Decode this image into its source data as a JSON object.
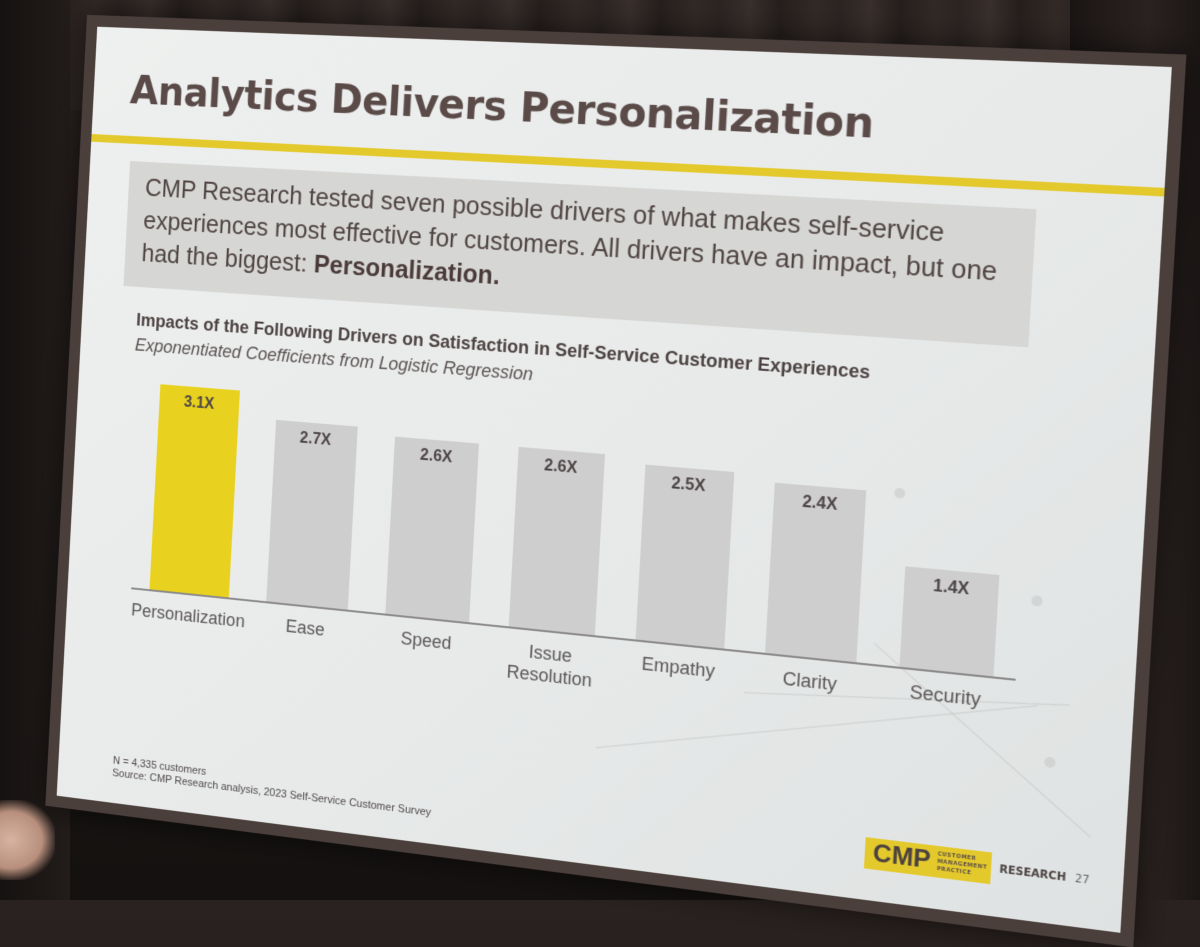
{
  "slide": {
    "title": "Analytics Delivers Personalization",
    "intro_text": "CMP Research tested seven possible drivers of what makes self-service experiences most effective for customers. All drivers have an impact, but one had the biggest: ",
    "intro_emphasis": "Personalization.",
    "chart_title": "Impacts of the Following Drivers on Satisfaction in Self-Service Customer Experiences",
    "chart_subtitle": "Exponentiated Coefficients from Logistic Regression",
    "footnote_n": "N = 4,335 customers",
    "footnote_source": "Source: CMP Research analysis, 2023 Self-Service Customer Survey",
    "logo": {
      "mark": "CMP",
      "sub_line1": "CUSTOMER",
      "sub_line2": "MANAGEMENT",
      "sub_line3": "PRACTICE",
      "research": "RESEARCH",
      "page_number": "27"
    },
    "colors": {
      "accent_yellow": "#e9d21f",
      "bar_gray": "#cfcecf",
      "title_text": "#5a4a48"
    }
  },
  "chart_data": {
    "type": "bar",
    "title": "Impacts of the Following Drivers on Satisfaction in Self-Service Customer Experiences",
    "subtitle": "Exponentiated Coefficients from Logistic Regression",
    "categories": [
      "Personalization",
      "Ease",
      "Speed",
      "Issue Resolution",
      "Empathy",
      "Clarity",
      "Security"
    ],
    "values": [
      3.1,
      2.7,
      2.6,
      2.6,
      2.5,
      2.4,
      1.4
    ],
    "value_labels": [
      "3.1X",
      "2.7X",
      "2.6X",
      "2.6X",
      "2.5X",
      "2.4X",
      "1.4X"
    ],
    "highlighted_category": "Personalization",
    "xlabel": "",
    "ylabel": "",
    "ylim": [
      0,
      3.2
    ],
    "grid": false,
    "legend": "none"
  }
}
